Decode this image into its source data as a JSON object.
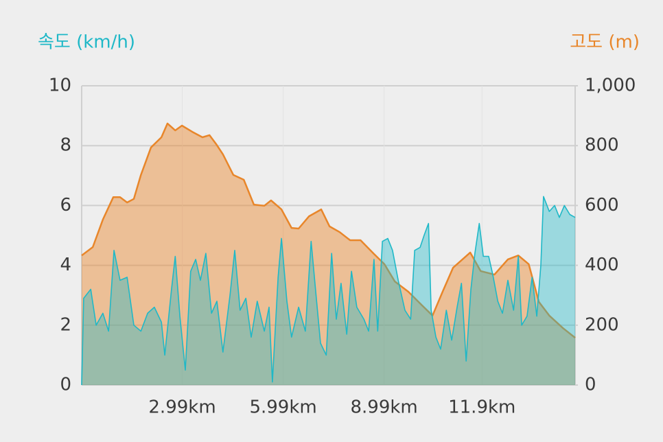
{
  "chart_data": {
    "type": "area",
    "y_title": "속도 (km/h)",
    "y2_title": "고도 (m)",
    "xlim": [
      0,
      14.67
    ],
    "xticks": [
      {
        "value": 2.99,
        "label": "2.99km"
      },
      {
        "value": 5.99,
        "label": "5.99km"
      },
      {
        "value": 8.99,
        "label": "8.99km"
      },
      {
        "value": 11.9,
        "label": "11.9km"
      }
    ],
    "ylim": [
      0,
      10
    ],
    "yticks": [
      0,
      2,
      4,
      6,
      8,
      10
    ],
    "y2lim": [
      0,
      1000
    ],
    "y2ticks": [
      0,
      200,
      400,
      600,
      800,
      {
        "value": 1000,
        "label": "1,000"
      }
    ],
    "grid": true,
    "series": [
      {
        "name": "속도 (km/h)",
        "color": "#1fb8c7",
        "x": [
          0,
          0.06,
          0.27,
          0.43,
          0.63,
          0.8,
          0.96,
          1.14,
          1.35,
          1.55,
          1.76,
          1.96,
          2.16,
          2.37,
          2.47,
          2.67,
          2.78,
          2.92,
          3.08,
          3.24,
          3.39,
          3.53,
          3.69,
          3.86,
          4.02,
          4.2,
          4.41,
          4.55,
          4.71,
          4.88,
          5.04,
          5.22,
          5.43,
          5.57,
          5.67,
          5.84,
          5.94,
          6.1,
          6.24,
          6.45,
          6.65,
          6.82,
          6.96,
          7.1,
          7.27,
          7.43,
          7.57,
          7.71,
          7.88,
          8.02,
          8.18,
          8.39,
          8.53,
          8.69,
          8.8,
          8.94,
          9.1,
          9.24,
          9.41,
          9.61,
          9.78,
          9.9,
          10.06,
          10.18,
          10.31,
          10.39,
          10.53,
          10.67,
          10.84,
          11.0,
          11.16,
          11.29,
          11.43,
          11.57,
          11.69,
          11.82,
          11.94,
          12.1,
          12.22,
          12.37,
          12.51,
          12.67,
          12.84,
          12.98,
          13.08,
          13.24,
          13.39,
          13.53,
          13.65,
          13.73,
          13.9,
          14.06,
          14.2,
          14.35,
          14.51,
          14.67
        ],
        "values": [
          0.0,
          2.9,
          3.2,
          2.0,
          2.4,
          1.8,
          4.5,
          3.5,
          3.6,
          2.0,
          1.8,
          2.4,
          2.6,
          2.1,
          1.0,
          3.2,
          4.3,
          2.3,
          0.5,
          3.8,
          4.2,
          3.5,
          4.4,
          2.4,
          2.8,
          1.1,
          3.0,
          4.5,
          2.5,
          2.9,
          1.6,
          2.8,
          1.8,
          2.6,
          0.1,
          3.6,
          4.9,
          2.8,
          1.6,
          2.6,
          1.8,
          4.8,
          3.1,
          1.4,
          1.0,
          4.4,
          2.2,
          3.4,
          1.7,
          3.8,
          2.6,
          2.2,
          1.8,
          4.2,
          1.8,
          4.8,
          4.9,
          4.5,
          3.5,
          2.5,
          2.2,
          4.5,
          4.6,
          5.0,
          5.4,
          2.5,
          1.6,
          1.2,
          2.5,
          1.5,
          2.6,
          3.4,
          0.8,
          3.2,
          4.4,
          5.4,
          4.3,
          4.3,
          3.7,
          2.8,
          2.4,
          3.5,
          2.5,
          4.3,
          2.0,
          2.3,
          3.6,
          2.3,
          4.0,
          6.3,
          5.8,
          6.0,
          5.6,
          6.0,
          5.7,
          5.6
        ]
      },
      {
        "name": "고도 (m)",
        "color": "#e8862a",
        "axis": "y2",
        "x": [
          0,
          0.33,
          0.63,
          0.94,
          1.14,
          1.35,
          1.55,
          1.76,
          2.06,
          2.37,
          2.55,
          2.78,
          2.98,
          3.29,
          3.59,
          3.8,
          4.0,
          4.2,
          4.51,
          4.82,
          5.12,
          5.43,
          5.63,
          5.94,
          6.24,
          6.45,
          6.76,
          7.12,
          7.37,
          7.67,
          7.98,
          8.29,
          8.69,
          9.0,
          9.31,
          9.71,
          10.12,
          10.43,
          10.73,
          11.04,
          11.55,
          11.86,
          12.27,
          12.67,
          12.98,
          13.29,
          13.59,
          13.9,
          14.31,
          14.67
        ],
        "values": [
          433,
          461,
          553,
          628,
          628,
          610,
          622,
          702,
          794,
          828,
          874,
          851,
          867,
          846,
          828,
          835,
          805,
          771,
          702,
          686,
          603,
          599,
          617,
          587,
          525,
          523,
          564,
          587,
          530,
          511,
          484,
          484,
          438,
          404,
          346,
          312,
          266,
          232,
          312,
          392,
          443,
          381,
          369,
          420,
          433,
          404,
          278,
          232,
          190,
          158
        ]
      }
    ]
  }
}
